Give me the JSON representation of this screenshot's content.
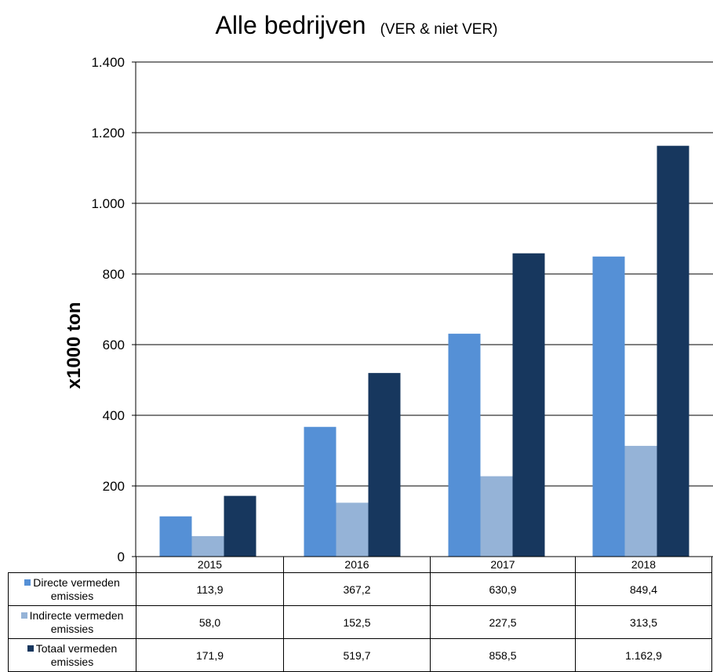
{
  "chart_data": {
    "type": "bar",
    "title": "Alle bedrijven",
    "subtitle": "(VER & niet VER)",
    "xlabel": "",
    "ylabel": "x1000 ton",
    "ylim": [
      0,
      1400
    ],
    "yticks": [
      0,
      200,
      400,
      600,
      800,
      1000,
      1200,
      1400
    ],
    "ytick_labels": [
      "0",
      "200",
      "400",
      "600",
      "800",
      "1.000",
      "1.200",
      "1.400"
    ],
    "grid": true,
    "legend": "data-table-below",
    "categories": [
      "2015",
      "2016",
      "2017",
      "2018"
    ],
    "series": [
      {
        "name": "Directe vermeden emissies",
        "color": "#5590d6",
        "values": [
          113.9,
          367.2,
          630.9,
          849.4
        ],
        "labels": [
          "113,9",
          "367,2",
          "630,9",
          "849,4"
        ]
      },
      {
        "name": "Indirecte vermeden emissies",
        "color": "#95b3d7",
        "values": [
          58.0,
          152.5,
          227.5,
          313.5
        ],
        "labels": [
          "58,0",
          "152,5",
          "227,5",
          "313,5"
        ]
      },
      {
        "name": "Totaal vermeden emissies",
        "color": "#17375e",
        "values": [
          171.9,
          519.7,
          858.5,
          1162.9
        ],
        "labels": [
          "171,9",
          "519,7",
          "858,5",
          "1.162,9"
        ]
      }
    ]
  }
}
